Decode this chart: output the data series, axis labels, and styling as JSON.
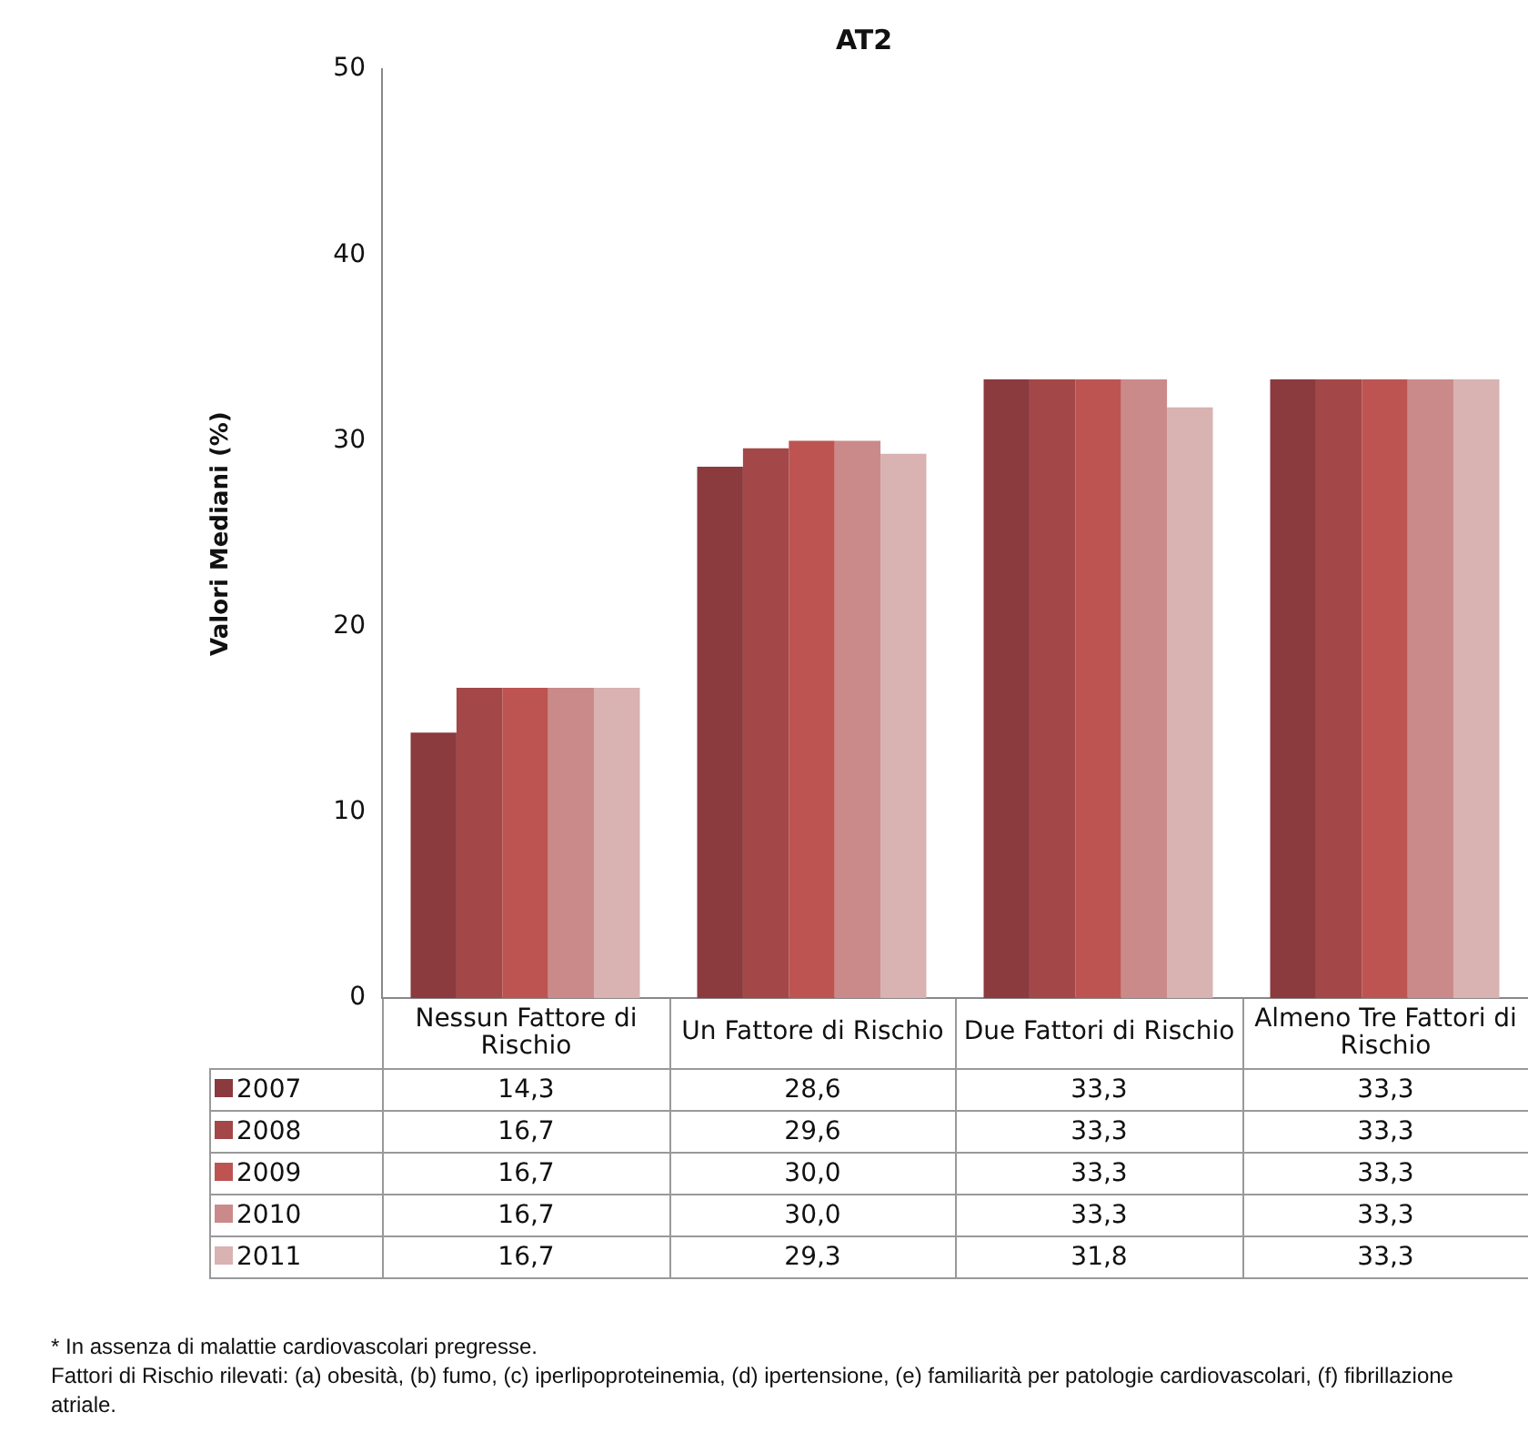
{
  "chart_data": {
    "type": "bar",
    "title": "AT2",
    "ylabel": "Valori Mediani (%)",
    "categories": [
      "Nessun Fattore di Rischio",
      "Un Fattore di Rischio",
      "Due Fattori di Rischio",
      "Almeno Tre Fattori di Rischio"
    ],
    "series": [
      {
        "name": "2007",
        "color": "#8b3a3e",
        "values": [
          14.3,
          28.6,
          33.3,
          33.3
        ],
        "value_labels": [
          "14,3",
          "28,6",
          "33,3",
          "33,3"
        ]
      },
      {
        "name": "2008",
        "color": "#a34748",
        "values": [
          16.7,
          29.6,
          33.3,
          33.3
        ],
        "value_labels": [
          "16,7",
          "29,6",
          "33,3",
          "33,3"
        ]
      },
      {
        "name": "2009",
        "color": "#bd5452",
        "values": [
          16.7,
          30.0,
          33.3,
          33.3
        ],
        "value_labels": [
          "16,7",
          "30,0",
          "33,3",
          "33,3"
        ]
      },
      {
        "name": "2010",
        "color": "#cb8a8a",
        "values": [
          16.7,
          30.0,
          33.3,
          33.3
        ],
        "value_labels": [
          "16,7",
          "30,0",
          "33,3",
          "33,3"
        ]
      },
      {
        "name": "2011",
        "color": "#d9b2b2",
        "values": [
          16.7,
          29.3,
          31.8,
          33.3
        ],
        "value_labels": [
          "16,7",
          "29,3",
          "31,8",
          "33,3"
        ]
      }
    ],
    "ylim": [
      0,
      50
    ],
    "yticks": [
      0,
      10,
      20,
      30,
      40,
      50
    ],
    "grid": false,
    "legend": "bottom",
    "annotations": [
      "* In assenza di malattie cardiovascolari pregresse.",
      "Fattori di Rischio rilevati: (a) obesità, (b) fumo, (c) iperlipoproteinemia, (d) ipertensione, (e) familiarità per patologie cardiovascolari, (f) fibrillazione atriale."
    ]
  }
}
